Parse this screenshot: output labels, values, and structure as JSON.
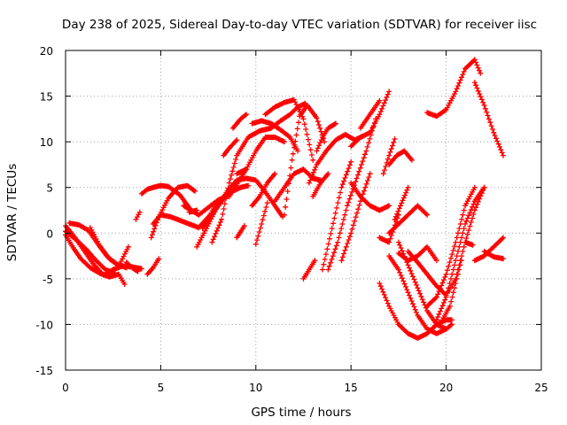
{
  "chart_data": {
    "type": "scatter",
    "title": "Day 238 of 2025, Sidereal Day-to-day VTEC variation (SDTVAR) for receiver iisc",
    "xlabel": "GPS time / hours",
    "ylabel": "SDTVAR / TECUs",
    "xlim": [
      0,
      25
    ],
    "ylim": [
      -15,
      20
    ],
    "x_ticks": [
      "0",
      "5",
      "10",
      "15",
      "20",
      "25"
    ],
    "y_ticks": [
      "-15",
      "-10",
      "-5",
      "0",
      "5",
      "10",
      "15",
      "20"
    ],
    "grid": true,
    "marker": "plus",
    "color": "#ff0000",
    "tracks": [
      {
        "x": [
          0.0,
          0.5,
          1.0,
          1.5,
          2.0,
          2.5,
          3.0,
          3.5,
          4.0
        ],
        "y": [
          0.8,
          -0.5,
          -2.0,
          -3.5,
          -4.6,
          -4.0,
          -3.6,
          -3.7,
          -3.9
        ]
      },
      {
        "x": [
          0.0,
          0.4,
          0.8,
          1.3,
          1.8,
          2.3,
          2.8,
          3.1
        ],
        "y": [
          -0.2,
          -1.6,
          -2.8,
          -3.8,
          -4.4,
          -4.8,
          -4.5,
          -5.6
        ]
      },
      {
        "x": [
          0.2,
          0.7,
          1.2,
          1.7,
          2.2,
          2.7,
          3.2
        ],
        "y": [
          1.1,
          0.9,
          0.3,
          -1.2,
          -2.6,
          -3.4,
          -3.8
        ]
      },
      {
        "x": [
          0.0,
          0.6,
          1.1,
          1.6,
          2.1,
          2.6
        ],
        "y": [
          0.2,
          -0.8,
          -1.8,
          -3.0,
          -4.0,
          -4.4
        ]
      },
      {
        "x": [
          1.3,
          1.8,
          2.3,
          2.8,
          3.3
        ],
        "y": [
          0.6,
          -1.4,
          -2.8,
          -3.6,
          -1.5
        ]
      },
      {
        "x": [
          3.2,
          3.5,
          3.8
        ],
        "y": [
          -3.2,
          -3.8,
          -4.2
        ]
      },
      {
        "x": [
          3.7,
          3.9
        ],
        "y": [
          1.5,
          2.3
        ]
      },
      {
        "x": [
          4.3,
          4.6,
          4.9
        ],
        "y": [
          -4.5,
          -3.8,
          -2.8
        ]
      },
      {
        "x": [
          4.0,
          4.3,
          4.6,
          5.0,
          5.4,
          6.0,
          6.6
        ],
        "y": [
          4.3,
          4.8,
          5.0,
          5.2,
          5.1,
          4.2,
          2.5
        ]
      },
      {
        "x": [
          4.6,
          5.0,
          5.5,
          6.0,
          6.5,
          7.0,
          7.6,
          8.0
        ],
        "y": [
          1.0,
          2.0,
          1.8,
          1.4,
          1.0,
          0.6,
          2.0,
          3.5
        ]
      },
      {
        "x": [
          4.5,
          4.9,
          5.4,
          5.9,
          6.4,
          6.8
        ],
        "y": [
          -0.5,
          1.8,
          3.8,
          5.0,
          5.2,
          4.6
        ]
      },
      {
        "x": [
          6.2,
          6.6,
          7.0,
          7.5,
          8.0,
          8.4
        ],
        "y": [
          3.0,
          2.5,
          2.0,
          2.8,
          3.6,
          4.0
        ]
      },
      {
        "x": [
          6.5,
          6.9
        ],
        "y": [
          2.3,
          2.5
        ]
      },
      {
        "x": [
          6.9,
          7.4,
          7.9,
          8.5,
          9.0,
          9.5,
          10.0,
          10.5,
          11.0,
          11.4
        ],
        "y": [
          -1.5,
          0.5,
          2.6,
          4.6,
          5.8,
          6.0,
          5.8,
          4.5,
          3.0,
          1.8
        ]
      },
      {
        "x": [
          7.2,
          7.7,
          8.2,
          8.7,
          9.2,
          9.6
        ],
        "y": [
          0.5,
          2.0,
          3.5,
          4.5,
          5.0,
          5.2
        ]
      },
      {
        "x": [
          7.7,
          8.2,
          8.6,
          9.0,
          9.6,
          10.2,
          10.8,
          11.3,
          11.8,
          12.2,
          12.6
        ],
        "y": [
          -1.0,
          1.5,
          5.5,
          8.5,
          10.5,
          11.2,
          11.5,
          12.3,
          13.0,
          13.8,
          14.2
        ]
      },
      {
        "x": [
          8.3,
          8.6,
          9.0
        ],
        "y": [
          8.5,
          9.3,
          10.2
        ]
      },
      {
        "x": [
          8.8,
          9.2,
          9.5
        ],
        "y": [
          11.5,
          12.5,
          13.0
        ]
      },
      {
        "x": [
          8.6,
          8.9,
          9.2,
          9.5
        ],
        "y": [
          4.0,
          5.0,
          6.0,
          7.0
        ]
      },
      {
        "x": [
          9.0,
          9.4
        ],
        "y": [
          -0.5,
          0.8
        ]
      },
      {
        "x": [
          9.0,
          9.5,
          10.0,
          10.5,
          11.0,
          11.5
        ],
        "y": [
          6.5,
          7.0,
          9.0,
          10.5,
          10.5,
          10.0
        ]
      },
      {
        "x": [
          9.8,
          10.3,
          10.8,
          11.3,
          11.8,
          12.2
        ],
        "y": [
          12.0,
          12.3,
          12.0,
          11.3,
          10.5,
          9.0
        ]
      },
      {
        "x": [
          9.8,
          10.2,
          10.6,
          11.0
        ],
        "y": [
          3.0,
          4.0,
          5.5,
          6.5
        ]
      },
      {
        "x": [
          10.0,
          10.3,
          10.6
        ],
        "y": [
          -1.2,
          1.0,
          3.3
        ]
      },
      {
        "x": [
          10.5,
          11.0,
          11.5,
          12.0,
          12.5,
          13.0
        ],
        "y": [
          13.0,
          13.8,
          14.3,
          14.6,
          12.5,
          8.0
        ]
      },
      {
        "x": [
          11.0,
          11.5,
          12.0,
          12.5,
          13.0,
          13.4
        ],
        "y": [
          3.5,
          5.0,
          6.5,
          7.0,
          6.0,
          5.8
        ]
      },
      {
        "x": [
          11.5,
          11.9,
          12.3,
          12.7,
          13.2,
          13.6
        ],
        "y": [
          2.0,
          8.0,
          12.8,
          14.0,
          12.6,
          10.0
        ]
      },
      {
        "x": [
          12.5,
          12.8,
          13.1
        ],
        "y": [
          -5.0,
          -4.0,
          -3.0
        ]
      },
      {
        "x": [
          12.8,
          13.2,
          13.7,
          14.2,
          14.7,
          15.2,
          15.6
        ],
        "y": [
          5.5,
          7.5,
          9.0,
          10.2,
          10.8,
          10.2,
          10.6
        ]
      },
      {
        "x": [
          13.2,
          13.5,
          13.8,
          14.2
        ],
        "y": [
          9.0,
          10.5,
          11.5,
          12.0
        ]
      },
      {
        "x": [
          13.0,
          13.4,
          13.8
        ],
        "y": [
          4.0,
          5.5,
          6.5
        ]
      },
      {
        "x": [
          13.5,
          14.0,
          14.5,
          15.0
        ],
        "y": [
          -4.0,
          0.5,
          5.0,
          7.8
        ]
      },
      {
        "x": [
          13.8,
          14.3,
          14.8,
          15.3,
          15.8,
          16.3
        ],
        "y": [
          -4.0,
          -1.0,
          3.0,
          6.0,
          9.0,
          12.5
        ]
      },
      {
        "x": [
          14.5,
          15.0,
          15.5,
          16.0
        ],
        "y": [
          -3.0,
          0.0,
          3.5,
          6.5
        ]
      },
      {
        "x": [
          15.0,
          15.5,
          16.0,
          16.5,
          17.0
        ],
        "y": [
          9.5,
          10.5,
          11.0,
          13.0,
          15.5
        ]
      },
      {
        "x": [
          15.0,
          15.5,
          16.0,
          16.5,
          17.0
        ],
        "y": [
          5.5,
          4.0,
          3.0,
          2.5,
          3.0
        ]
      },
      {
        "x": [
          15.5,
          16.0,
          16.5
        ],
        "y": [
          11.5,
          13.0,
          14.5
        ]
      },
      {
        "x": [
          16.5,
          17.0,
          17.5
        ],
        "y": [
          -0.5,
          -1.0,
          2.0
        ]
      },
      {
        "x": [
          16.7,
          17.0,
          17.3
        ],
        "y": [
          6.5,
          8.5,
          10.3
        ]
      },
      {
        "x": [
          17.0,
          17.4,
          17.8,
          18.2
        ],
        "y": [
          7.5,
          8.5,
          9.0,
          8.0
        ]
      },
      {
        "x": [
          17.0,
          17.5,
          18.0,
          18.5,
          19.0
        ],
        "y": [
          0.0,
          1.0,
          2.0,
          3.0,
          2.0
        ]
      },
      {
        "x": [
          17.3,
          17.6,
          18.0
        ],
        "y": [
          1.5,
          3.0,
          5.0
        ]
      },
      {
        "x": [
          17.5,
          18.0,
          18.5,
          19.0,
          19.5
        ],
        "y": [
          -2.2,
          -3.0,
          -2.5,
          -1.5,
          -3.0
        ]
      },
      {
        "x": [
          16.5,
          17.0,
          17.5,
          18.0,
          18.5,
          19.0,
          19.5,
          20.0,
          20.3
        ],
        "y": [
          -5.5,
          -8.0,
          -10.0,
          -11.0,
          -11.5,
          -11.0,
          -10.0,
          -9.5,
          -9.5
        ]
      },
      {
        "x": [
          17.0,
          17.5,
          18.0,
          18.5,
          19.0,
          19.5,
          20.0
        ],
        "y": [
          -2.5,
          -4.0,
          -6.5,
          -9.0,
          -10.5,
          -11.0,
          -10.5
        ]
      },
      {
        "x": [
          17.5,
          18.0,
          18.5,
          19.0,
          19.5,
          20.0,
          20.3
        ],
        "y": [
          -1.0,
          -3.5,
          -6.0,
          -8.5,
          -10.0,
          -10.5,
          -10.0
        ]
      },
      {
        "x": [
          18.0,
          18.5,
          19.0,
          19.5,
          20.0,
          20.5,
          21.0,
          21.5,
          22.0
        ],
        "y": [
          -2.0,
          -3.2,
          -4.5,
          -5.8,
          -6.8,
          -5.0,
          -1.0,
          2.5,
          5.0
        ]
      },
      {
        "x": [
          19.0,
          19.5,
          20.0,
          20.5,
          21.0,
          21.5
        ],
        "y": [
          -8.0,
          -7.0,
          -4.5,
          -1.0,
          3.0,
          5.0
        ]
      },
      {
        "x": [
          19.5,
          20.0,
          20.5,
          21.0,
          21.5,
          22.0
        ],
        "y": [
          -9.5,
          -7.0,
          -3.0,
          1.0,
          3.5,
          5.0
        ]
      },
      {
        "x": [
          19.8,
          20.2,
          20.5,
          20.8
        ],
        "y": [
          -9.5,
          -8.0,
          -5.5,
          -3.0
        ]
      },
      {
        "x": [
          19.0,
          19.5,
          20.0,
          20.5,
          21.0,
          21.5,
          21.8
        ],
        "y": [
          13.2,
          12.8,
          13.5,
          15.5,
          18.0,
          19.0,
          17.5
        ]
      },
      {
        "x": [
          21.5,
          22.0,
          22.5,
          23.0
        ],
        "y": [
          16.5,
          14.0,
          11.0,
          8.5
        ]
      },
      {
        "x": [
          21.0,
          21.4
        ],
        "y": [
          -1.0,
          -1.3
        ]
      },
      {
        "x": [
          21.5,
          22.0,
          22.5,
          23.0
        ],
        "y": [
          -3.0,
          -2.5,
          -1.5,
          -0.5
        ]
      },
      {
        "x": [
          22.0,
          22.5,
          23.0
        ],
        "y": [
          -2.0,
          -2.6,
          -2.8
        ]
      }
    ]
  }
}
